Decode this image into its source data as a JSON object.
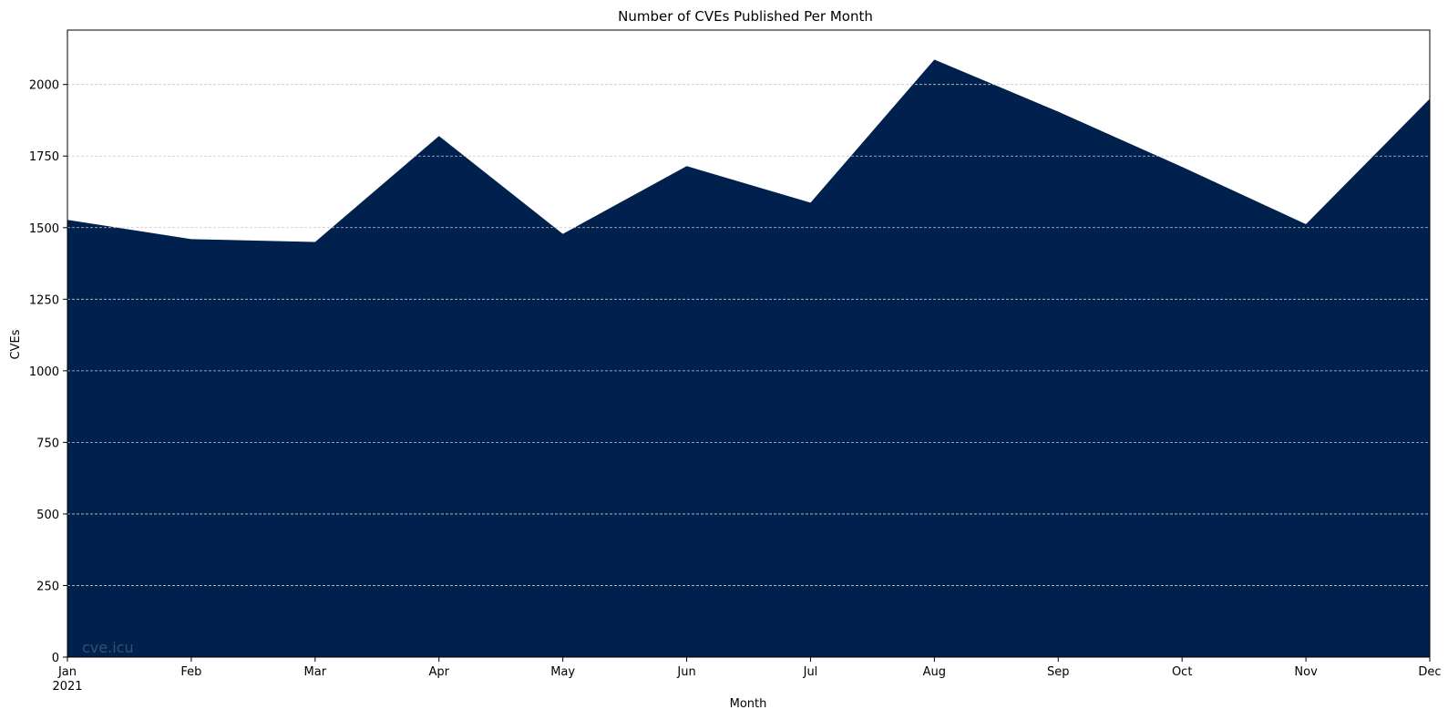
{
  "chart_data": {
    "type": "area",
    "title": "Number of CVEs Published Per Month",
    "xlabel": "Month",
    "ylabel": "CVEs",
    "categories": [
      "Jan",
      "Feb",
      "Mar",
      "Apr",
      "May",
      "Jun",
      "Jul",
      "Aug",
      "Sep",
      "Oct",
      "Nov",
      "Dec"
    ],
    "year_label": "2021",
    "series": [
      {
        "values": [
          1527,
          1460,
          1450,
          1820,
          1478,
          1715,
          1587,
          2087,
          1905,
          1712,
          1512,
          1950
        ]
      }
    ],
    "ylim": [
      0,
      2190
    ],
    "yticks": [
      0,
      250,
      500,
      750,
      1000,
      1250,
      1500,
      1750,
      2000
    ],
    "grid": "horizontal dashed",
    "fill_color": "#00204E",
    "watermark": "cve.icu"
  }
}
